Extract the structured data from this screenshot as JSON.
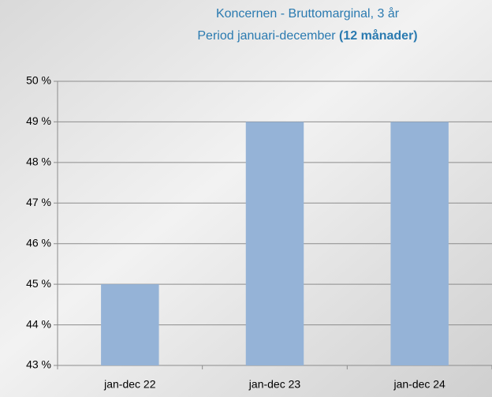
{
  "chart_data": {
    "type": "bar",
    "title": "Koncernen - Bruttomarginal, 3 år",
    "subtitle": "Period januari-december",
    "subtitle_bold": "(12 månader)",
    "categories": [
      "jan-dec 22",
      "jan-dec 23",
      "jan-dec 24"
    ],
    "values": [
      45,
      49,
      49
    ],
    "color": "#95b3d7",
    "ylim": [
      43,
      50
    ],
    "yticks": [
      {
        "value": 43,
        "label": "43 %"
      },
      {
        "value": 44,
        "label": "44 %"
      },
      {
        "value": 45,
        "label": "45 %"
      },
      {
        "value": 46,
        "label": "46 %"
      },
      {
        "value": 47,
        "label": "47 %"
      },
      {
        "value": 48,
        "label": "48 %"
      },
      {
        "value": 49,
        "label": "49 %"
      },
      {
        "value": 50,
        "label": "50 %"
      }
    ],
    "grid": true
  }
}
